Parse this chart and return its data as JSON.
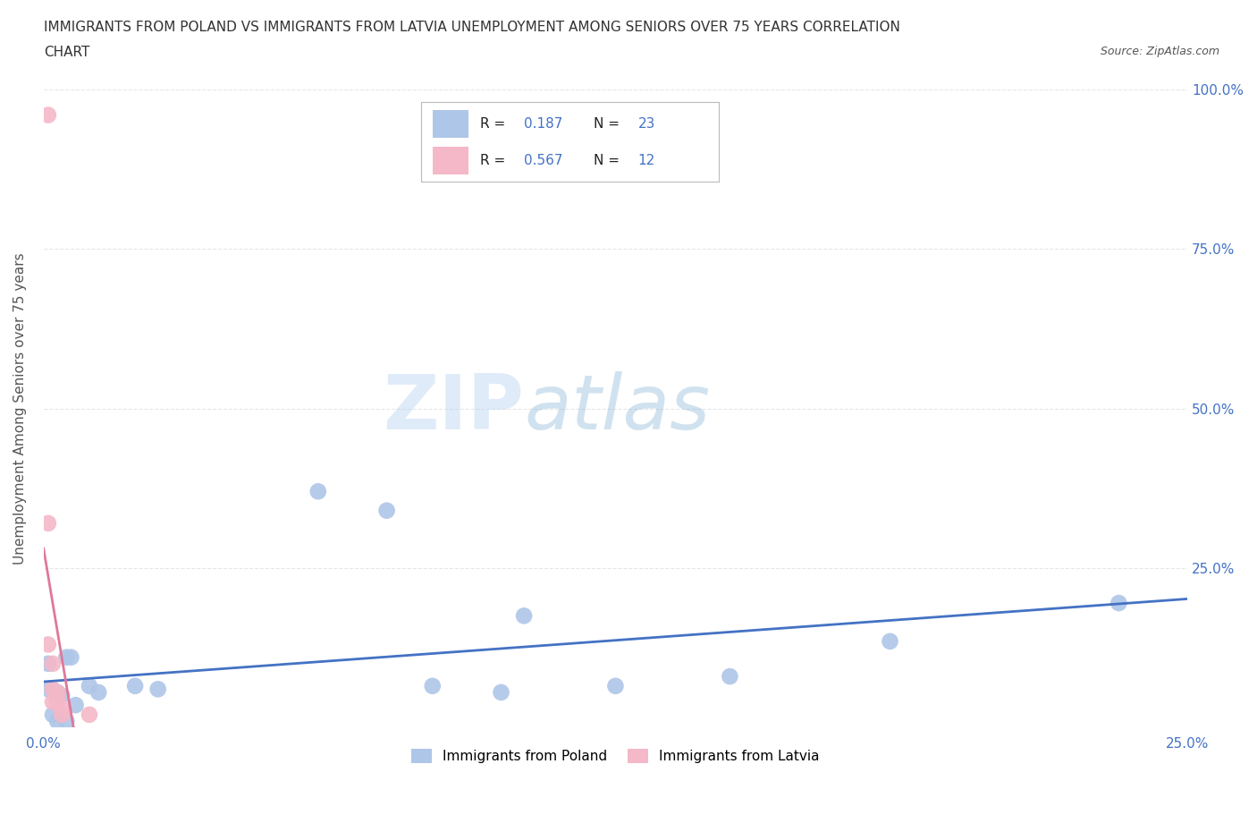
{
  "title_line1": "IMMIGRANTS FROM POLAND VS IMMIGRANTS FROM LATVIA UNEMPLOYMENT AMONG SENIORS OVER 75 YEARS CORRELATION",
  "title_line2": "CHART",
  "source": "Source: ZipAtlas.com",
  "ylabel": "Unemployment Among Seniors over 75 years",
  "xlim": [
    0.0,
    0.25
  ],
  "ylim": [
    0.0,
    1.0
  ],
  "xticks": [
    0.0,
    0.05,
    0.1,
    0.15,
    0.2,
    0.25
  ],
  "yticks": [
    0.0,
    0.25,
    0.5,
    0.75,
    1.0
  ],
  "poland_R": 0.187,
  "poland_N": 23,
  "latvia_R": 0.567,
  "latvia_N": 12,
  "poland_color": "#aec6e8",
  "latvia_color": "#f4b8c8",
  "poland_line_color": "#4472c4",
  "latvia_line_color": "#e07898",
  "poland_x": [
    0.001,
    0.001,
    0.002,
    0.003,
    0.003,
    0.004,
    0.005,
    0.005,
    0.006,
    0.007,
    0.01,
    0.012,
    0.02,
    0.025,
    0.06,
    0.075,
    0.085,
    0.1,
    0.105,
    0.125,
    0.15,
    0.185,
    0.235
  ],
  "poland_y": [
    0.06,
    0.1,
    0.02,
    0.01,
    0.055,
    0.05,
    0.01,
    0.11,
    0.11,
    0.035,
    0.065,
    0.055,
    0.065,
    0.06,
    0.37,
    0.34,
    0.065,
    0.055,
    0.175,
    0.065,
    0.08,
    0.135,
    0.195
  ],
  "latvia_x": [
    0.001,
    0.001,
    0.001,
    0.002,
    0.002,
    0.002,
    0.003,
    0.003,
    0.003,
    0.004,
    0.004,
    0.01
  ],
  "latvia_y": [
    0.96,
    0.32,
    0.13,
    0.1,
    0.06,
    0.04,
    0.055,
    0.045,
    0.04,
    0.03,
    0.02,
    0.02
  ],
  "watermark_zip": "ZIP",
  "watermark_atlas": "atlas",
  "background_color": "#ffffff",
  "grid_color": "#e0e0e0"
}
